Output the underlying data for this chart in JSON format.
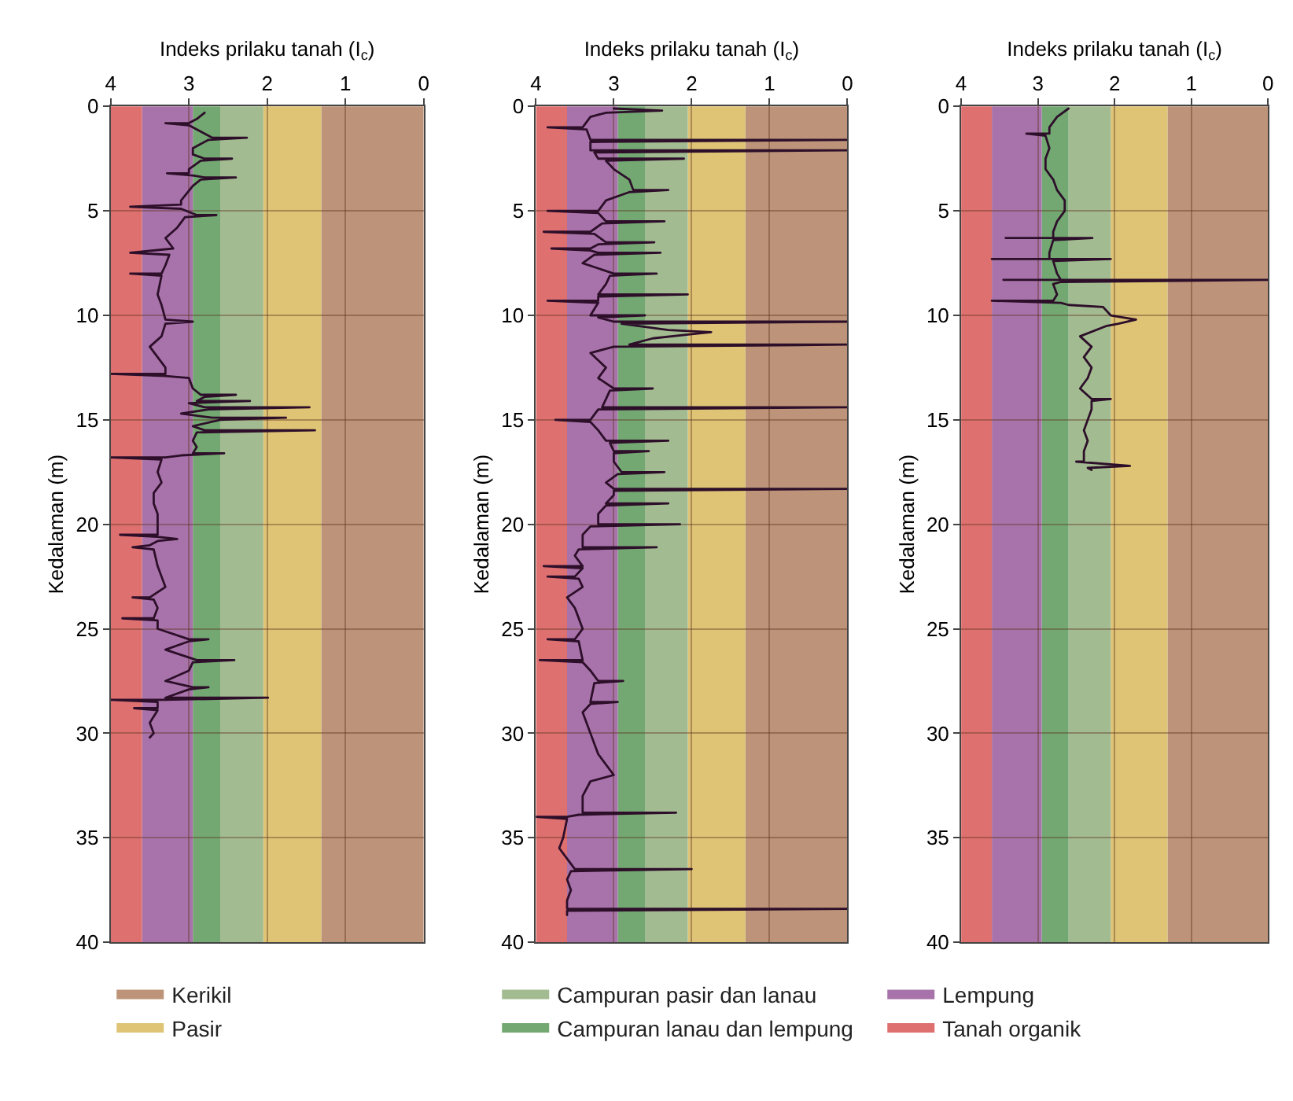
{
  "chart_data": [
    {
      "type": "line",
      "xlabel": "Indeks prilaku tanah (I$_{c}$)",
      "ylabel": "Kedalaman (m)",
      "xlim": [
        4,
        0
      ],
      "xticks": [
        4,
        3,
        2,
        1,
        0
      ],
      "ylim": [
        40,
        0
      ],
      "yticks": [
        0,
        5,
        10,
        15,
        20,
        25,
        30,
        35,
        40
      ],
      "grid": true,
      "legend": "bottom",
      "marker": "none",
      "line_style": "solid",
      "bands": [
        {
          "axis": "x",
          "from": 1.31,
          "to": 0,
          "label": "Kerikil",
          "color": "#bd9479"
        },
        {
          "axis": "x",
          "from": 2.05,
          "to": 1.31,
          "label": "Pasir",
          "color": "#dfc476"
        },
        {
          "axis": "x",
          "from": 2.6,
          "to": 2.05,
          "label": "Campuran pasir dan lanau",
          "color": "#a3bb91"
        },
        {
          "axis": "x",
          "from": 2.95,
          "to": 2.6,
          "label": "Campuran lanau dan lempung",
          "color": "#73a872"
        },
        {
          "axis": "x",
          "from": 3.6,
          "to": 2.95,
          "label": "Lempung",
          "color": "#a873aa"
        },
        {
          "axis": "x",
          "from": 4,
          "to": 3.6,
          "label": "Tanah organik",
          "color": "#df7070"
        }
      ],
      "series": [
        {
          "color": "#2d0f2a",
          "x": [
            2.8,
            2.9,
            3.0,
            3.3,
            3.0,
            2.85,
            2.7,
            2.26,
            2.75,
            2.95,
            2.95,
            2.8,
            2.45,
            2.85,
            3.0,
            3.0,
            3.28,
            2.95,
            2.8,
            2.4,
            2.85,
            2.95,
            3.1,
            3.1,
            3.75,
            3.1,
            2.9,
            2.65,
            3.05,
            3.15,
            3.3,
            3.2,
            3.75,
            3.25,
            3.3,
            3.35,
            3.75,
            3.35,
            3.4,
            3.35,
            3.3,
            2.95,
            3.3,
            3.35,
            3.5,
            3.4,
            3.3,
            3.3,
            4.0,
            3.3,
            3.0,
            2.95,
            2.85,
            2.4,
            2.8,
            2.9,
            2.22,
            3.0,
            2.8,
            1.46,
            2.75,
            3.1,
            2.7,
            1.76,
            2.6,
            2.95,
            2.8,
            1.39,
            2.9,
            2.95,
            2.9,
            2.95,
            2.55,
            3.1,
            3.3,
            4.0,
            3.35,
            3.4,
            3.35,
            3.45,
            3.45,
            3.4,
            3.4,
            3.4,
            3.88,
            3.4,
            3.15,
            3.4,
            3.5,
            3.72,
            3.45,
            3.4,
            3.35,
            3.3,
            3.5,
            3.72,
            3.45,
            3.4,
            3.45,
            3.85,
            3.4,
            3.4,
            3.0,
            2.75,
            3.0,
            3.3,
            2.9,
            2.42,
            2.95,
            3.0,
            3.3,
            2.95,
            2.75,
            3.0,
            3.3,
            1.99,
            3.3,
            4.0,
            3.4,
            3.4,
            3.7,
            3.4,
            3.5,
            3.45,
            3.5
          ],
          "values": [
            0.3,
            0.6,
            0.8,
            0.8,
            0.9,
            1.2,
            1.5,
            1.5,
            1.6,
            2.0,
            2.3,
            2.5,
            2.5,
            2.6,
            3.0,
            3.2,
            3.2,
            3.3,
            3.4,
            3.4,
            3.5,
            3.8,
            4.5,
            4.7,
            4.8,
            4.9,
            5.2,
            5.2,
            5.3,
            5.8,
            6.3,
            6.8,
            7.0,
            7.1,
            7.6,
            8.0,
            8.0,
            8.1,
            9.0,
            9.5,
            10.2,
            10.3,
            10.4,
            11.0,
            11.5,
            12.0,
            12.5,
            12.8,
            12.8,
            12.9,
            13.0,
            13.5,
            13.8,
            13.8,
            13.9,
            14.1,
            14.1,
            14.2,
            14.4,
            14.4,
            14.5,
            14.7,
            14.9,
            14.9,
            15.0,
            15.3,
            15.5,
            15.5,
            15.6,
            16.0,
            16.3,
            16.6,
            16.6,
            16.7,
            16.8,
            16.8,
            16.9,
            17.5,
            18.0,
            18.5,
            19.0,
            19.5,
            20.0,
            20.5,
            20.5,
            20.6,
            20.7,
            20.8,
            21.0,
            21.1,
            21.2,
            22.0,
            22.5,
            23.0,
            23.5,
            23.5,
            23.6,
            24.0,
            24.5,
            24.5,
            24.6,
            25.0,
            25.5,
            25.5,
            25.6,
            26.0,
            26.5,
            26.5,
            26.6,
            27.0,
            27.5,
            27.8,
            27.8,
            27.9,
            28.3,
            28.3,
            28.4,
            28.4,
            28.5,
            28.8,
            28.8,
            28.9,
            29.5,
            30.0,
            30.2
          ]
        }
      ]
    },
    {
      "type": "line",
      "xlabel": "Indeks prilaku tanah (I$_{c}$)",
      "ylabel": "Kedalaman (m)",
      "xlim": [
        4,
        0
      ],
      "xticks": [
        4,
        3,
        2,
        1,
        0
      ],
      "ylim": [
        40,
        0
      ],
      "yticks": [
        0,
        5,
        10,
        15,
        20,
        25,
        30,
        35,
        40
      ],
      "grid": true,
      "marker": "none",
      "line_style": "solid",
      "bands": [
        {
          "axis": "x",
          "from": 1.31,
          "to": 0,
          "color": "#bd9479"
        },
        {
          "axis": "x",
          "from": 2.05,
          "to": 1.31,
          "color": "#dfc476"
        },
        {
          "axis": "x",
          "from": 2.6,
          "to": 2.05,
          "color": "#a3bb91"
        },
        {
          "axis": "x",
          "from": 2.95,
          "to": 2.6,
          "color": "#73a872"
        },
        {
          "axis": "x",
          "from": 3.6,
          "to": 2.95,
          "color": "#a873aa"
        },
        {
          "axis": "x",
          "from": 4,
          "to": 3.6,
          "color": "#df7070"
        }
      ],
      "series": [
        {
          "color": "#2d0f2a",
          "x": [
            3.0,
            2.38,
            3.1,
            3.3,
            3.4,
            3.85,
            3.35,
            3.3,
            0.0,
            3.3,
            3.3,
            0.0,
            3.25,
            3.2,
            2.1,
            3.1,
            3.0,
            2.8,
            2.75,
            2.3,
            2.8,
            3.1,
            3.2,
            3.85,
            3.2,
            3.1,
            2.35,
            3.15,
            3.3,
            3.9,
            3.25,
            3.1,
            2.48,
            3.2,
            3.3,
            3.8,
            3.3,
            3.2,
            2.4,
            3.25,
            3.4,
            3.0,
            2.45,
            3.05,
            3.1,
            3.2,
            2.05,
            3.2,
            3.2,
            3.85,
            3.2,
            3.3,
            2.6,
            3.2,
            3.0,
            0.0,
            2.9,
            2.3,
            1.75,
            2.0,
            2.5,
            2.8,
            0.0,
            3.0,
            3.3,
            3.1,
            3.2,
            3.0,
            2.5,
            3.05,
            3.1,
            3.15,
            0.0,
            3.2,
            3.3,
            3.75,
            3.3,
            3.2,
            3.1,
            2.3,
            3.05,
            3.0,
            2.55,
            3.0,
            3.0,
            2.9,
            2.35,
            2.95,
            3.1,
            3.0,
            0.0,
            3.0,
            3.0,
            3.1,
            2.3,
            3.1,
            3.2,
            3.2,
            2.15,
            3.3,
            3.4,
            3.4,
            2.45,
            3.45,
            3.5,
            3.4,
            3.9,
            3.4,
            3.5,
            3.85,
            3.45,
            3.4,
            3.6,
            3.5,
            3.4,
            3.5,
            3.85,
            3.45,
            3.4,
            3.95,
            3.4,
            3.3,
            3.2,
            2.88,
            3.25,
            3.3,
            2.95,
            3.3,
            3.4,
            3.3,
            3.2,
            3.0,
            3.3,
            3.4,
            3.4,
            2.2,
            3.45,
            3.6,
            4.0,
            3.6,
            3.65,
            3.7,
            3.6,
            3.5,
            2.0,
            3.55,
            3.6,
            3.55,
            3.6,
            3.6,
            0.0,
            3.6,
            3.6
          ],
          "values": [
            0.1,
            0.2,
            0.3,
            0.5,
            1.0,
            1.0,
            1.1,
            1.6,
            1.6,
            1.7,
            2.1,
            2.1,
            2.2,
            2.5,
            2.5,
            2.6,
            3.0,
            3.5,
            4.0,
            4.0,
            4.1,
            4.5,
            5.0,
            5.0,
            5.1,
            5.5,
            5.5,
            5.6,
            6.0,
            6.0,
            6.1,
            6.5,
            6.5,
            6.6,
            6.8,
            6.8,
            6.9,
            7.0,
            7.0,
            7.1,
            7.5,
            8.0,
            8.0,
            8.1,
            8.5,
            9.0,
            9.0,
            9.1,
            9.3,
            9.3,
            9.4,
            10.0,
            10.0,
            10.1,
            10.3,
            10.3,
            10.4,
            10.7,
            10.8,
            10.9,
            11.1,
            11.4,
            11.4,
            11.5,
            11.8,
            12.5,
            13.0,
            13.5,
            13.5,
            13.6,
            14.0,
            14.4,
            14.4,
            14.5,
            15.0,
            15.0,
            15.1,
            15.5,
            16.0,
            16.0,
            16.1,
            16.5,
            16.5,
            16.6,
            17.0,
            17.5,
            17.5,
            17.6,
            18.0,
            18.3,
            18.3,
            18.4,
            18.6,
            19.0,
            19.0,
            19.1,
            19.5,
            20.0,
            20.0,
            20.1,
            20.5,
            21.1,
            21.1,
            21.2,
            21.5,
            22.0,
            22.0,
            22.1,
            22.5,
            22.5,
            22.6,
            23.0,
            23.5,
            24.0,
            25.0,
            25.5,
            25.5,
            25.6,
            26.5,
            26.5,
            26.6,
            27.0,
            27.5,
            27.5,
            27.6,
            28.5,
            28.5,
            28.6,
            29.0,
            30.0,
            31.0,
            32.0,
            32.3,
            33.0,
            33.8,
            33.8,
            33.9,
            34.0,
            34.0,
            34.1,
            35.0,
            35.5,
            36.0,
            36.5,
            36.5,
            36.6,
            37.0,
            37.5,
            38.0,
            38.4,
            38.4,
            38.5,
            38.7
          ]
        }
      ]
    },
    {
      "type": "line",
      "xlabel": "Indeks prilaku tanah (I$_{c}$)",
      "ylabel": "Kedalaman (m)",
      "xlim": [
        4,
        0
      ],
      "xticks": [
        4,
        3,
        2,
        1,
        0
      ],
      "ylim": [
        40,
        0
      ],
      "yticks": [
        0,
        5,
        10,
        15,
        20,
        25,
        30,
        35,
        40
      ],
      "grid": true,
      "marker": "none",
      "line_style": "solid",
      "bands": [
        {
          "axis": "x",
          "from": 1.31,
          "to": 0,
          "color": "#bd9479"
        },
        {
          "axis": "x",
          "from": 2.05,
          "to": 1.31,
          "color": "#dfc476"
        },
        {
          "axis": "x",
          "from": 2.6,
          "to": 2.05,
          "color": "#a3bb91"
        },
        {
          "axis": "x",
          "from": 2.95,
          "to": 2.6,
          "color": "#73a872"
        },
        {
          "axis": "x",
          "from": 3.6,
          "to": 2.95,
          "color": "#a873aa"
        },
        {
          "axis": "x",
          "from": 4,
          "to": 3.6,
          "color": "#df7070"
        }
      ],
      "series": [
        {
          "color": "#2d0f2a",
          "x": [
            2.6,
            2.75,
            2.85,
            2.85,
            3.15,
            2.9,
            2.85,
            2.9,
            2.9,
            2.8,
            2.75,
            2.65,
            2.65,
            2.75,
            2.8,
            2.8,
            3.42,
            2.29,
            2.8,
            2.85,
            2.85,
            3.6,
            2.05,
            2.8,
            2.75,
            2.7,
            3.45,
            0.0,
            2.7,
            2.8,
            2.75,
            2.8,
            3.6,
            2.7,
            2.6,
            2.15,
            2.05,
            1.72,
            1.95,
            2.1,
            2.45,
            2.3,
            2.4,
            2.3,
            2.35,
            2.45,
            2.3,
            2.05,
            2.3,
            2.3,
            2.35,
            2.4,
            2.35,
            2.4,
            2.4,
            2.5,
            1.8,
            2.35,
            2.3
          ],
          "values": [
            0.1,
            0.5,
            1.0,
            1.3,
            1.3,
            1.4,
            2.0,
            2.5,
            3.0,
            3.5,
            4.0,
            4.5,
            5.0,
            5.5,
            6.0,
            6.3,
            6.3,
            6.3,
            6.4,
            7.0,
            7.3,
            7.3,
            7.3,
            7.4,
            8.0,
            8.3,
            8.3,
            8.3,
            8.4,
            8.5,
            9.0,
            9.3,
            9.3,
            9.4,
            9.5,
            9.6,
            10.0,
            10.2,
            10.4,
            10.5,
            11.0,
            11.5,
            12.0,
            12.5,
            13.0,
            13.5,
            14.0,
            14.0,
            14.1,
            14.5,
            15.0,
            15.5,
            16.0,
            16.5,
            17.0,
            17.0,
            17.2,
            17.3,
            17.4
          ]
        }
      ]
    }
  ]
}
